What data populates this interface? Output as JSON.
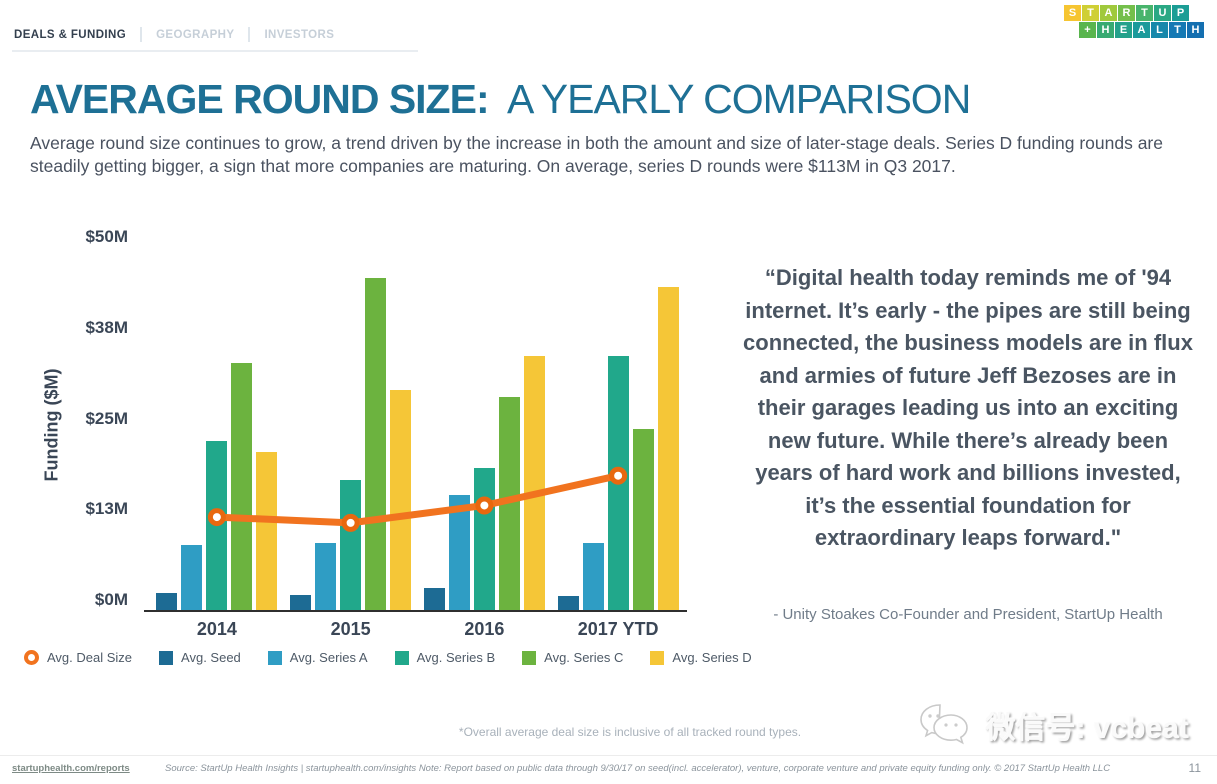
{
  "tabs": {
    "items": [
      {
        "label": "DEALS & FUNDING",
        "active": true
      },
      {
        "label": "GEOGRAPHY",
        "active": false
      },
      {
        "label": "INVESTORS",
        "active": false
      }
    ]
  },
  "logo": {
    "rows": [
      {
        "letters": [
          "S",
          "T",
          "A",
          "R",
          "T",
          "U",
          "P"
        ],
        "colors": [
          "#f6c531",
          "#cfcf34",
          "#a0c93c",
          "#74bf4b",
          "#48b46c",
          "#2aa884",
          "#1b9d95"
        ]
      },
      {
        "letters": [
          "+",
          "H",
          "E",
          "A",
          "L",
          "T",
          "H"
        ],
        "colors": [
          "#59b54d",
          "#37aa72",
          "#23a18b",
          "#1b9a9b",
          "#1788ab",
          "#1579b4",
          "#146fb0"
        ]
      }
    ]
  },
  "header": {
    "title_bold": "AVERAGE ROUND SIZE:",
    "title_light": "A YEARLY COMPARISON",
    "title_color": "#1e7095"
  },
  "intro": {
    "text": "Average round size continues to grow, a trend driven by the increase in both the amount and size of later-stage deals. Series D funding rounds are steadily getting bigger, a sign that more companies are maturing. On average, series D rounds were $113M in Q3 2017."
  },
  "chart_data": {
    "type": "bar",
    "categories": [
      "2014",
      "2015",
      "2016",
      "2017 YTD"
    ],
    "series": [
      {
        "name": "Avg. Seed",
        "color": "#1d6b94",
        "values": [
          2.3,
          2.0,
          3.1,
          1.9
        ]
      },
      {
        "name": "Avg. Series A",
        "color": "#2f9dc4",
        "values": [
          9.0,
          9.2,
          15.9,
          9.2
        ]
      },
      {
        "name": "Avg. Series B",
        "color": "#21a88b",
        "values": [
          23.3,
          17.9,
          19.5,
          35.0
        ]
      },
      {
        "name": "Avg. Series C",
        "color": "#6cb33f",
        "values": [
          34.0,
          45.8,
          29.3,
          25.0
        ]
      },
      {
        "name": "Avg. Series D",
        "color": "#f5c637",
        "values": [
          21.7,
          30.3,
          35.0,
          44.5
        ]
      }
    ],
    "line_series": {
      "name": "Avg. Deal Size",
      "color": "#f1731f",
      "values": [
        12.8,
        12.0,
        14.4,
        18.5
      ]
    },
    "title": "",
    "xlabel": "",
    "ylabel": "Funding ($M)",
    "ylim": [
      0,
      50
    ],
    "yticks": [
      {
        "value": 0,
        "label": "$0M"
      },
      {
        "value": 12.5,
        "label": "$13M"
      },
      {
        "value": 25,
        "label": "$25M"
      },
      {
        "value": 37.5,
        "label": "$38M"
      },
      {
        "value": 50,
        "label": "$50M"
      }
    ],
    "grid": false,
    "legend_position": "bottom"
  },
  "quote": {
    "text": "“Digital health today reminds me of '94 internet. It’s early - the pipes are still being connected, the business models are in flux and armies of future Jeff Bezoses are in their garages leading us into an exciting new future. While there’s already been years of hard work and billions invested, it’s the essential foundation for extraordinary leaps forward.\"",
    "attribution": "- Unity Stoakes Co-Founder and President, StartUp Health"
  },
  "footnote": {
    "text": "*Overall average deal size is inclusive of all tracked round types."
  },
  "watermark": {
    "text": "微信号: vcbeat",
    "icon": "wechat-icon"
  },
  "footer": {
    "link": "startuphealth.com/reports",
    "source": "Source: StartUp Health Insights | startuphealth.com/insights Note: Report based on public data through 9/30/17 on seed(incl. accelerator), venture, corporate venture and private equity funding only. © 2017 StartUp Health LLC",
    "page": "11"
  }
}
